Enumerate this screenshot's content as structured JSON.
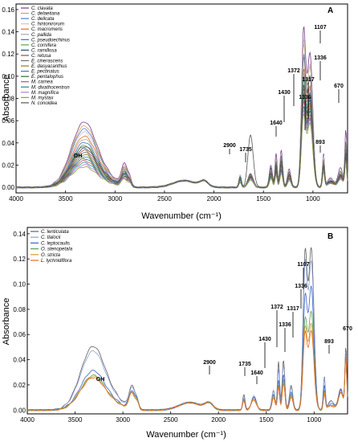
{
  "chart_data": [
    {
      "panel_label": "A",
      "type": "line",
      "xlabel": "Wavenumber (cm⁻¹)",
      "ylabel": "Absorbance",
      "xlim": [
        4000,
        650
      ],
      "ylim": [
        -0.005,
        0.165
      ],
      "x_ticks": [
        "4000",
        "3500",
        "3000",
        "2500",
        "2000",
        "1500",
        "1000"
      ],
      "y_ticks": [
        "0.00",
        "0.02",
        "0.04",
        "0.06",
        "0.08",
        "0.10",
        "0.12",
        "0.14",
        "0.16"
      ],
      "annotations": [
        "OH",
        "2900",
        "1735",
        "1640",
        "1430",
        "1372",
        "1336",
        "1317",
        "1336",
        "1107",
        "893",
        "670"
      ],
      "series": [
        {
          "name": "C. clavata",
          "peaks": {
            "oh": 0.064,
            "b2900": 0.02,
            "b1735": 0.01,
            "b1640": 0.012,
            "b1430": 0.02,
            "b1372": 0.03,
            "b1336": 0.034,
            "b1107": 0.135,
            "b1030": 0.12,
            "b670": 0.05
          }
        },
        {
          "name": "C. delaetiana",
          "peaks": {
            "oh": 0.06,
            "b2900": 0.018,
            "b1735": 0.011,
            "b1640": 0.01,
            "b1430": 0.016,
            "b1372": 0.024,
            "b1336": 0.028,
            "b1107": 0.12,
            "b1030": 0.108,
            "b670": 0.04
          }
        },
        {
          "name": "C. delicata",
          "peaks": {
            "oh": 0.057,
            "b2900": 0.017,
            "b1735": 0.009,
            "b1640": 0.011,
            "b1430": 0.015,
            "b1372": 0.022,
            "b1336": 0.026,
            "b1107": 0.112,
            "b1030": 0.1,
            "b670": 0.038
          }
        },
        {
          "name": "C. hintonirorum",
          "peaks": {
            "oh": 0.054,
            "b2900": 0.016,
            "b1735": 0.012,
            "b1640": 0.01,
            "b1430": 0.016,
            "b1372": 0.026,
            "b1336": 0.03,
            "b1107": 0.125,
            "b1030": 0.11,
            "b670": 0.044
          }
        },
        {
          "name": "C. macromeris",
          "peaks": {
            "oh": 0.05,
            "b2900": 0.015,
            "b1735": 0.008,
            "b1640": 0.012,
            "b1430": 0.014,
            "b1372": 0.02,
            "b1336": 0.024,
            "b1107": 0.1,
            "b1030": 0.09,
            "b670": 0.036
          }
        },
        {
          "name": "C. pallida",
          "peaks": {
            "oh": 0.047,
            "b2900": 0.014,
            "b1735": 0.01,
            "b1640": 0.009,
            "b1430": 0.013,
            "b1372": 0.02,
            "b1336": 0.023,
            "b1107": 0.096,
            "b1030": 0.087,
            "b670": 0.034
          }
        },
        {
          "name": "C. pseudoechinus",
          "peaks": {
            "oh": 0.044,
            "b2900": 0.013,
            "b1735": 0.009,
            "b1640": 0.01,
            "b1430": 0.013,
            "b1372": 0.019,
            "b1336": 0.022,
            "b1107": 0.093,
            "b1030": 0.084,
            "b670": 0.033
          }
        },
        {
          "name": "C. cornifera",
          "peaks": {
            "oh": 0.041,
            "b2900": 0.012,
            "b1735": 0.008,
            "b1640": 0.011,
            "b1430": 0.012,
            "b1372": 0.018,
            "b1336": 0.021,
            "b1107": 0.09,
            "b1030": 0.08,
            "b670": 0.032
          }
        },
        {
          "name": "C. ramillosa",
          "peaks": {
            "oh": 0.038,
            "b2900": 0.012,
            "b1735": 0.007,
            "b1640": 0.009,
            "b1430": 0.012,
            "b1372": 0.017,
            "b1336": 0.02,
            "b1107": 0.086,
            "b1030": 0.078,
            "b670": 0.03
          }
        },
        {
          "name": "C. retusa",
          "peaks": {
            "oh": 0.036,
            "b2900": 0.011,
            "b1735": 0.009,
            "b1640": 0.01,
            "b1430": 0.011,
            "b1372": 0.016,
            "b1336": 0.019,
            "b1107": 0.083,
            "b1030": 0.075,
            "b670": 0.029
          }
        },
        {
          "name": "E. cinerascens",
          "peaks": {
            "oh": 0.034,
            "b2900": 0.011,
            "b1735": 0.01,
            "b1640": 0.012,
            "b1430": 0.014,
            "b1372": 0.024,
            "b1336": 0.028,
            "b1107": 0.11,
            "b1030": 0.098,
            "b670": 0.04
          }
        },
        {
          "name": "E. dasyacanthus",
          "peaks": {
            "oh": 0.032,
            "b2900": 0.01,
            "b1735": 0.008,
            "b1640": 0.009,
            "b1430": 0.011,
            "b1372": 0.015,
            "b1336": 0.018,
            "b1107": 0.08,
            "b1030": 0.072,
            "b670": 0.028
          }
        },
        {
          "name": "E. pectinatus",
          "peaks": {
            "oh": 0.03,
            "b2900": 0.01,
            "b1735": 0.007,
            "b1640": 0.008,
            "b1430": 0.01,
            "b1372": 0.014,
            "b1336": 0.017,
            "b1107": 0.078,
            "b1030": 0.07,
            "b670": 0.027
          }
        },
        {
          "name": "E. pentalophus",
          "peaks": {
            "oh": 0.028,
            "b2900": 0.009,
            "b1735": 0.008,
            "b1640": 0.009,
            "b1430": 0.01,
            "b1372": 0.014,
            "b1336": 0.016,
            "b1107": 0.075,
            "b1030": 0.068,
            "b670": 0.026
          }
        },
        {
          "name": "M. carnea",
          "peaks": {
            "oh": 0.026,
            "b2900": 0.009,
            "b1735": 0.006,
            "b1640": 0.008,
            "b1430": 0.009,
            "b1372": 0.013,
            "b1336": 0.015,
            "b1107": 0.072,
            "b1030": 0.065,
            "b670": 0.025
          }
        },
        {
          "name": "M. dixathocentron",
          "peaks": {
            "oh": 0.024,
            "b2900": 0.008,
            "b1735": 0.007,
            "b1640": 0.007,
            "b1430": 0.009,
            "b1372": 0.012,
            "b1336": 0.014,
            "b1107": 0.068,
            "b1030": 0.062,
            "b670": 0.024
          }
        },
        {
          "name": "M. magnifica",
          "peaks": {
            "oh": 0.022,
            "b2900": 0.008,
            "b1735": 0.006,
            "b1640": 0.008,
            "b1430": 0.008,
            "b1372": 0.011,
            "b1336": 0.013,
            "b1107": 0.065,
            "b1030": 0.06,
            "b670": 0.023
          }
        },
        {
          "name": "M. mystax",
          "peaks": {
            "oh": 0.02,
            "b2900": 0.007,
            "b1735": 0.005,
            "b1640": 0.007,
            "b1430": 0.008,
            "b1372": 0.011,
            "b1336": 0.012,
            "b1107": 0.062,
            "b1030": 0.057,
            "b670": 0.022
          }
        },
        {
          "name": "N. conoidea",
          "peaks": {
            "oh": 0.04,
            "b2900": 0.013,
            "b1735": 0.004,
            "b1640": 0.047,
            "b1430": 0.018,
            "b1372": 0.02,
            "b1336": 0.024,
            "b1107": 0.085,
            "b1030": 0.08,
            "b670": 0.03
          }
        }
      ],
      "colors": [
        "#7b3a8c",
        "#d4a24c",
        "#4f7fd1",
        "#c8c8c8",
        "#e36a27",
        "#a8a8a8",
        "#3d6fb5",
        "#58a845",
        "#2a4d7d",
        "#9c4f2a",
        "#6f6f6f",
        "#8b7a24",
        "#3c7bb0",
        "#2f6d2f",
        "#c44a7a",
        "#1e8a8a",
        "#b07de0",
        "#8fa03a",
        "#555555"
      ]
    },
    {
      "panel_label": "B",
      "type": "line",
      "xlabel": "Wavenumber (cm⁻¹)",
      "ylabel": "Absorbance",
      "xlim": [
        4000,
        650
      ],
      "ylim": [
        -0.003,
        0.145
      ],
      "x_ticks": [
        "4000",
        "3500",
        "3000",
        "2500",
        "2000",
        "1500",
        "1000"
      ],
      "y_ticks": [
        "0.00",
        "0.02",
        "0.04",
        "0.06",
        "0.08",
        "0.10",
        "0.12",
        "0.14"
      ],
      "annotations": [
        "OH",
        "2900",
        "1735",
        "1640",
        "1430",
        "1372",
        "1336",
        "1317",
        "1336",
        "1107",
        "893",
        "670"
      ],
      "series": [
        {
          "name": "C. lenticulata",
          "peaks": {
            "oh": 0.055,
            "b2900": 0.018,
            "b1735": 0.012,
            "b1640": 0.01,
            "b1430": 0.016,
            "b1372": 0.038,
            "b1336": 0.04,
            "b1107": 0.118,
            "b1030": 0.128,
            "b670": 0.048
          }
        },
        {
          "name": "C. tlalocii",
          "peaks": {
            "oh": 0.051,
            "b2900": 0.017,
            "b1735": 0.01,
            "b1640": 0.011,
            "b1430": 0.015,
            "b1372": 0.032,
            "b1336": 0.036,
            "b1107": 0.11,
            "b1030": 0.118,
            "b670": 0.045
          }
        },
        {
          "name": "C. leptocaulis",
          "peaks": {
            "oh": 0.034,
            "b2900": 0.015,
            "b1735": 0.009,
            "b1640": 0.01,
            "b1430": 0.012,
            "b1372": 0.024,
            "b1336": 0.028,
            "b1107": 0.085,
            "b1030": 0.098,
            "b670": 0.044
          }
        },
        {
          "name": "O. stenopetala",
          "peaks": {
            "oh": 0.03,
            "b2900": 0.014,
            "b1735": 0.008,
            "b1640": 0.009,
            "b1430": 0.011,
            "b1372": 0.02,
            "b1336": 0.024,
            "b1107": 0.068,
            "b1030": 0.078,
            "b670": 0.04
          }
        },
        {
          "name": "O. stricta",
          "peaks": {
            "oh": 0.029,
            "b2900": 0.013,
            "b1735": 0.008,
            "b1640": 0.009,
            "b1430": 0.011,
            "b1372": 0.019,
            "b1336": 0.022,
            "b1107": 0.062,
            "b1030": 0.068,
            "b670": 0.042
          }
        },
        {
          "name": "L. lychnidiflora",
          "peaks": {
            "oh": 0.028,
            "b2900": 0.013,
            "b1735": 0.007,
            "b1640": 0.008,
            "b1430": 0.01,
            "b1372": 0.018,
            "b1336": 0.021,
            "b1107": 0.058,
            "b1030": 0.062,
            "b670": 0.041
          }
        }
      ],
      "colors": [
        "#606060",
        "#8fa0d8",
        "#3d62c4",
        "#5aa04f",
        "#d99a2b",
        "#e36a27"
      ]
    }
  ],
  "legend_a": [
    "C. clavata",
    "C. delaetiana",
    "C. delicata",
    "C. hintonirorum",
    "C. macromeris",
    "C. pallida",
    "C. pseudoechinus",
    "C. cornifera",
    "C. ramillosa",
    "C. retusa",
    "E. cinerascens",
    "E. dasyacanthus",
    "E. pectinatus",
    "E. pentalophus",
    "M. carnea",
    "M. dixathocentron",
    "M. magnifica",
    "M. mystax",
    "N. conoidea"
  ],
  "legend_b": [
    "C. lenticulata",
    "C. tlalocii",
    "C. leptocaulis",
    "O. stenopetala",
    "O. stricta",
    "L. lychnidiflora"
  ]
}
